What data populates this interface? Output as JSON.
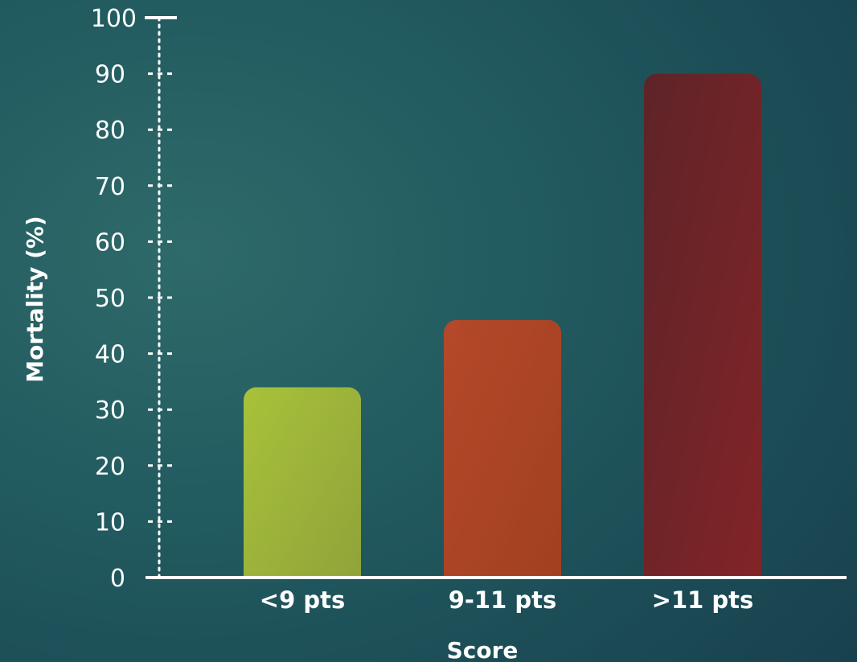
{
  "chart_data": {
    "type": "bar",
    "categories": [
      "<9 pts",
      "9-11 pts",
      ">11 pts"
    ],
    "values": [
      34,
      46,
      90
    ],
    "xlabel": "Score",
    "ylabel": "Mortality (%)",
    "ylim": [
      0,
      100
    ],
    "yticks": [
      0,
      10,
      20,
      30,
      40,
      50,
      60,
      70,
      80,
      90,
      100
    ],
    "bar_colors": [
      [
        "#a8c23a",
        "#8fa23a"
      ],
      [
        "#b5482a",
        "#a0401f"
      ],
      [
        "#5e2428",
        "#822428"
      ]
    ],
    "axis_color": "#ffffff",
    "grid": false,
    "legend": "none"
  }
}
